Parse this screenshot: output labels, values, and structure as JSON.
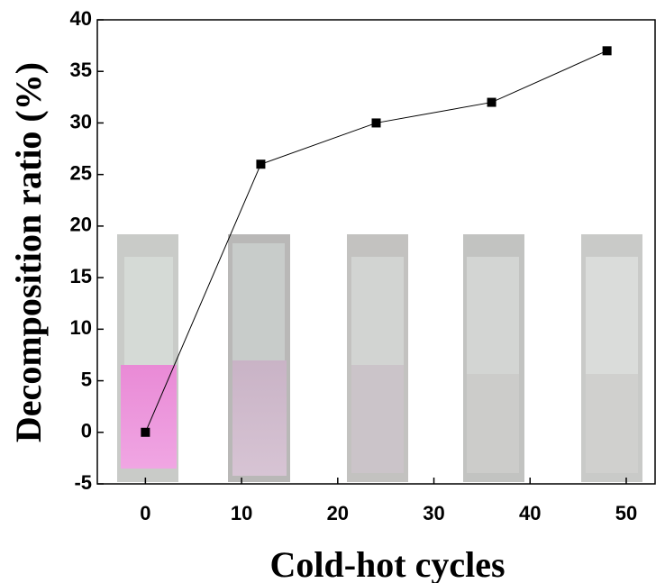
{
  "chart_data": {
    "type": "line",
    "x_label": "Cold-hot cycles",
    "y_label": "Decomposition ratio (%)",
    "x": [
      0,
      12,
      24,
      36,
      48
    ],
    "values": [
      0,
      26,
      30,
      32,
      37
    ],
    "color": "#000000",
    "xlim": [
      -5,
      53
    ],
    "xticks": [
      0,
      10,
      20,
      30,
      40,
      50
    ],
    "ylim": [
      -5,
      40
    ],
    "yticks": [
      -5,
      0,
      5,
      10,
      15,
      20,
      25,
      30,
      35,
      40
    ]
  }
}
